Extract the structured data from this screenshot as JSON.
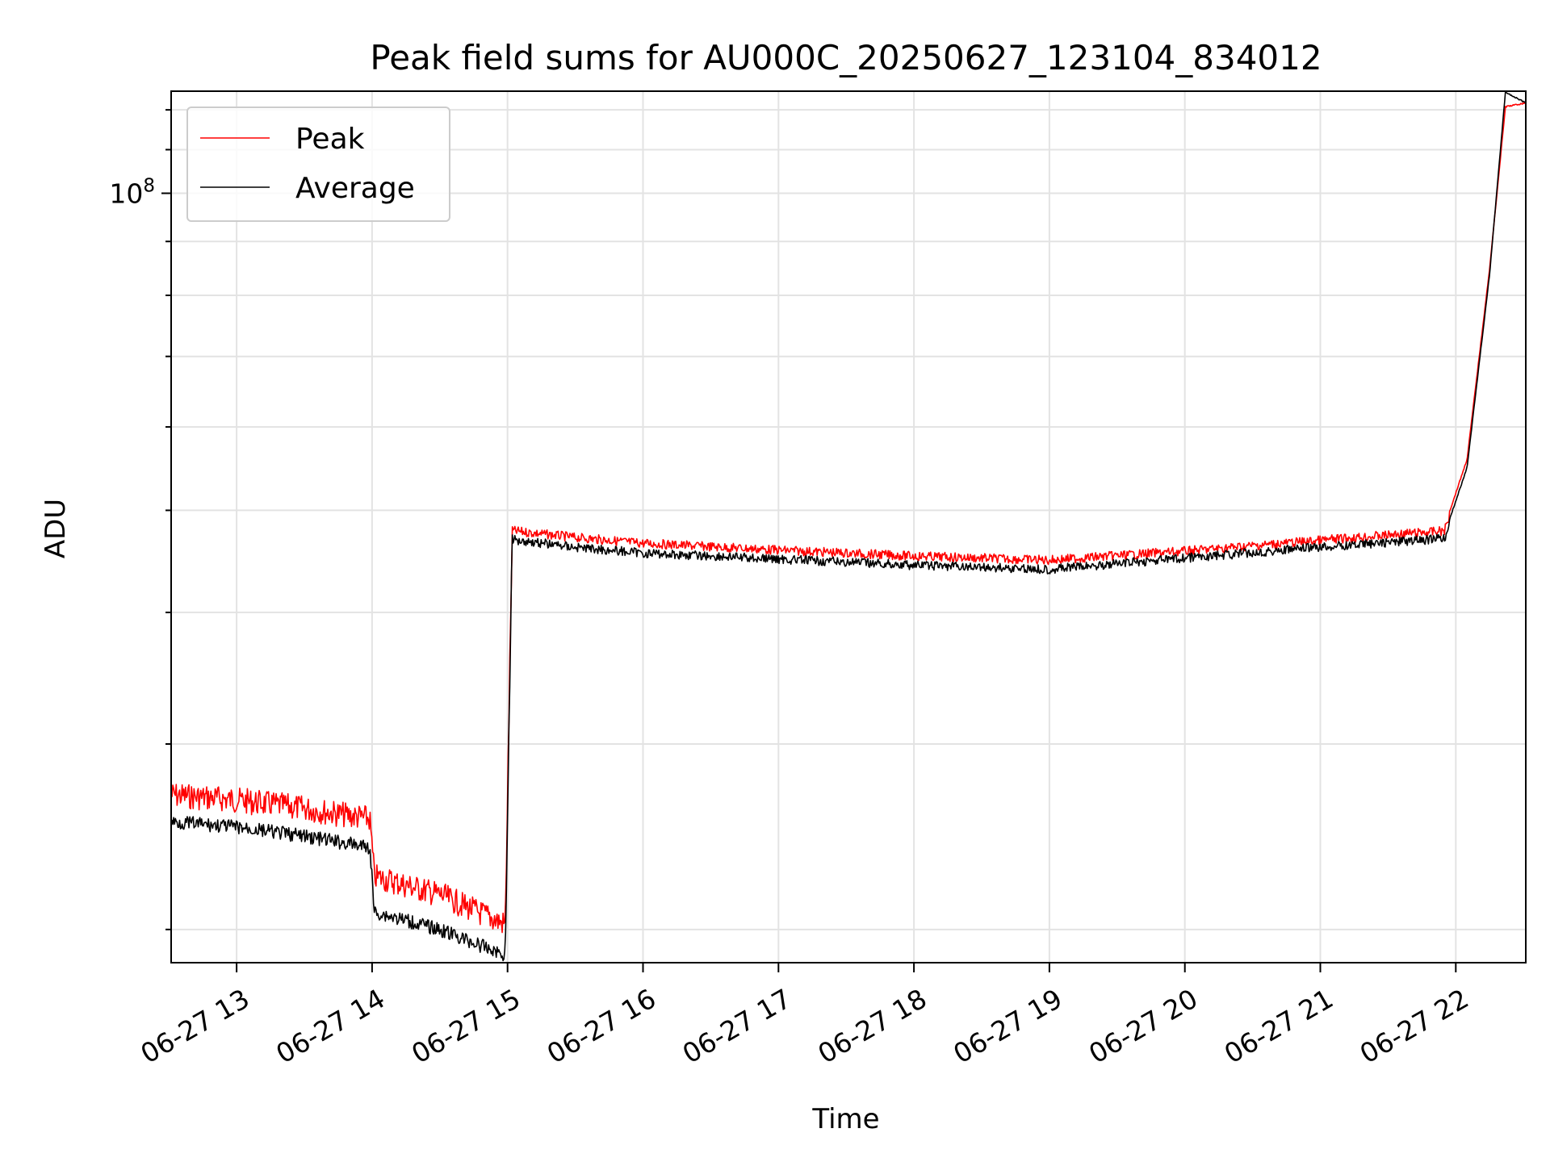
{
  "chart_data": {
    "type": "line",
    "title": "Peak field sums for AU000C_20250627_123104_834012",
    "xlabel": "Time",
    "ylabel": "ADU",
    "yscale": "log",
    "xlim": [
      "2025-06-27 12:31",
      "2025-06-27 22:31"
    ],
    "ylim": [
      18600000,
      125000000
    ],
    "y_tick_labels": [
      {
        "value": 100000000,
        "label": "10^8"
      }
    ],
    "x_tick_labels": [
      {
        "value": "2025-06-27 13:00",
        "label": "06-27 13"
      },
      {
        "value": "2025-06-27 14:00",
        "label": "06-27 14"
      },
      {
        "value": "2025-06-27 15:00",
        "label": "06-27 15"
      },
      {
        "value": "2025-06-27 16:00",
        "label": "06-27 16"
      },
      {
        "value": "2025-06-27 17:00",
        "label": "06-27 17"
      },
      {
        "value": "2025-06-27 18:00",
        "label": "06-27 18"
      },
      {
        "value": "2025-06-27 19:00",
        "label": "06-27 19"
      },
      {
        "value": "2025-06-27 20:00",
        "label": "06-27 20"
      },
      {
        "value": "2025-06-27 21:00",
        "label": "06-27 21"
      },
      {
        "value": "2025-06-27 22:00",
        "label": "06-27 22"
      }
    ],
    "grid": true,
    "legend_position": "upper-left",
    "series": [
      {
        "name": "Peak",
        "color": "#ff0000",
        "points": [
          [
            "2025-06-27 12:31",
            27600000
          ],
          [
            "2025-06-27 13:00",
            27300000
          ],
          [
            "2025-06-27 13:30",
            26800000
          ],
          [
            "2025-06-27 13:59",
            26200000
          ],
          [
            "2025-06-27 14:01",
            23100000
          ],
          [
            "2025-06-27 14:30",
            22200000
          ],
          [
            "2025-06-27 14:59",
            20800000
          ],
          [
            "2025-06-27 15:02",
            48300000
          ],
          [
            "2025-06-27 15:30",
            47600000
          ],
          [
            "2025-06-27 16:00",
            47000000
          ],
          [
            "2025-06-27 17:00",
            46300000
          ],
          [
            "2025-06-27 18:00",
            45700000
          ],
          [
            "2025-06-27 19:00",
            45300000
          ],
          [
            "2025-06-27 20:00",
            46200000
          ],
          [
            "2025-06-27 21:00",
            47300000
          ],
          [
            "2025-06-27 21:55",
            48300000
          ],
          [
            "2025-06-27 22:05",
            56000000
          ],
          [
            "2025-06-27 22:15",
            85000000
          ],
          [
            "2025-06-27 22:22",
            121000000
          ],
          [
            "2025-06-27 22:31",
            122000000
          ]
        ]
      },
      {
        "name": "Average",
        "color": "#000000",
        "points": [
          [
            "2025-06-27 12:31",
            25700000
          ],
          [
            "2025-06-27 13:00",
            25400000
          ],
          [
            "2025-06-27 13:30",
            24900000
          ],
          [
            "2025-06-27 13:59",
            24300000
          ],
          [
            "2025-06-27 14:01",
            21100000
          ],
          [
            "2025-06-27 14:30",
            20300000
          ],
          [
            "2025-06-27 14:59",
            19200000
          ],
          [
            "2025-06-27 15:02",
            47400000
          ],
          [
            "2025-06-27 15:30",
            46600000
          ],
          [
            "2025-06-27 16:00",
            46000000
          ],
          [
            "2025-06-27 17:00",
            45400000
          ],
          [
            "2025-06-27 18:00",
            44800000
          ],
          [
            "2025-06-27 19:00",
            44400000
          ],
          [
            "2025-06-27 20:00",
            45500000
          ],
          [
            "2025-06-27 21:00",
            46600000
          ],
          [
            "2025-06-27 21:55",
            47500000
          ],
          [
            "2025-06-27 22:05",
            55000000
          ],
          [
            "2025-06-27 22:15",
            84000000
          ],
          [
            "2025-06-27 22:22",
            125000000
          ],
          [
            "2025-06-27 22:31",
            122000000
          ]
        ]
      }
    ]
  }
}
